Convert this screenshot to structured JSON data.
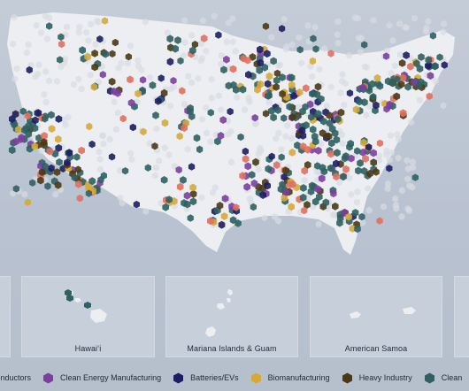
{
  "legend": {
    "items": [
      {
        "label": "Semiconductors",
        "visible_label": "iconductors",
        "color": "#e07060",
        "icon": "none"
      },
      {
        "label": "Clean Energy Manufacturing",
        "color": "#7b3f9e",
        "icon": "hexagon-icon"
      },
      {
        "label": "Batteries/EVs",
        "color": "#1c1d63",
        "icon": "hexagon-icon"
      },
      {
        "label": "Biomanufacturing",
        "color": "#d6a83a",
        "icon": "hexagon-icon"
      },
      {
        "label": "Heavy Industry",
        "color": "#4a3a14",
        "icon": "hexagon-icon"
      },
      {
        "label": "Clean",
        "color": "#2f6162",
        "icon": "hexagon-icon"
      }
    ]
  },
  "insets": [
    {
      "id": "hawaii",
      "label": "Hawaiʻi"
    },
    {
      "id": "mariana",
      "label": "Mariana Islands & Guam"
    },
    {
      "id": "samoa",
      "label": "American Samoa"
    }
  ],
  "colors": {
    "land": "#eceef2",
    "background": "#c0c8d5",
    "clean": "#2f6162",
    "batteries": "#1c1d63",
    "clean_energy_mfg": "#7b3f9e",
    "biomanufacturing": "#d6a83a",
    "heavy_industry": "#4a3a14",
    "semiconductors": "#e07060"
  }
}
